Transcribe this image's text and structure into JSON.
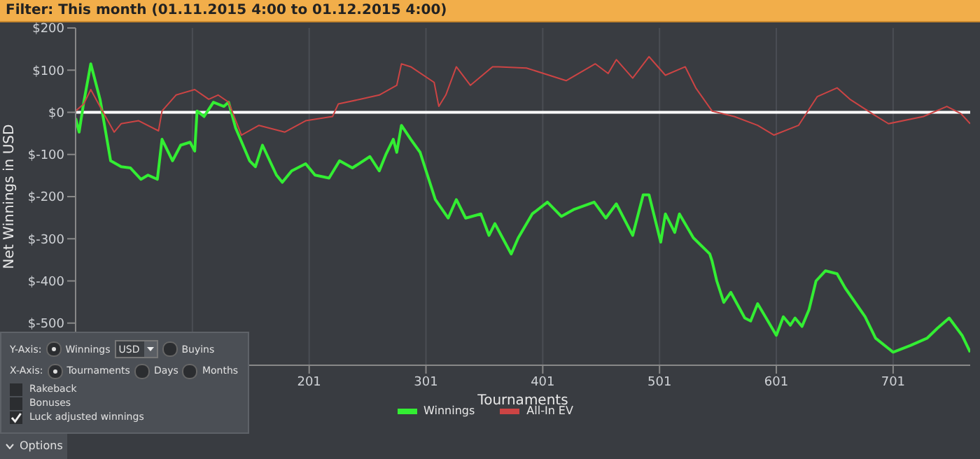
{
  "chart_data": {
    "type": "line",
    "title": "Filter: This month (01.11.2015 4:00 to 01.12.2015 4:00)",
    "xlabel": "Tournaments",
    "ylabel": "Net Winnings in USD",
    "xlim": [
      1,
      767
    ],
    "xticks": [
      {
        "value": 101,
        "label": null
      },
      201,
      301,
      401,
      501,
      601,
      701
    ],
    "ylim": [
      -600,
      200
    ],
    "yticks": [
      {
        "value": 200,
        "label": "$200"
      },
      {
        "value": 100,
        "label": "$100"
      },
      {
        "value": 0,
        "label": "$0"
      },
      {
        "value": -100,
        "label": "$-100"
      },
      {
        "value": -200,
        "label": "$-200"
      },
      {
        "value": -300,
        "label": "$-300"
      },
      {
        "value": -400,
        "label": "$-400"
      },
      {
        "value": -500,
        "label": "$-500"
      }
    ],
    "grid": true,
    "legend": "bottom",
    "marker": "none",
    "line_style": "solid",
    "ref_lines": [
      {
        "axis": "y",
        "value": 0,
        "color": "#ffffff"
      }
    ],
    "annotations": [
      "Y-Axis:",
      "Winnings",
      "USD",
      "Buyins",
      "X-Axis:",
      "Tournaments",
      "Days",
      "Months",
      "Rakeback",
      "Bonuses",
      "Luck adjusted winnings",
      "Options"
    ],
    "series": [
      {
        "name": "Winnings",
        "color": "#33ee33",
        "x": [
          1,
          4,
          8,
          14,
          22,
          31,
          40,
          48,
          57,
          63,
          71,
          75,
          84,
          91,
          99,
          103,
          105,
          111,
          119,
          128,
          132,
          138,
          150,
          155,
          161,
          173,
          178,
          186,
          198,
          206,
          218,
          227,
          238,
          253,
          261,
          267,
          273,
          276,
          280,
          288,
          296,
          309,
          320,
          327,
          335,
          348,
          355,
          360,
          374,
          380,
          392,
          405,
          417,
          428,
          445,
          455,
          464,
          478,
          487,
          492,
          502,
          506,
          514,
          518,
          530,
          544,
          546,
          550,
          556,
          562,
          574,
          579,
          585,
          601,
          607,
          613,
          617,
          623,
          629,
          635,
          643,
          653,
          660,
          677,
          686,
          701,
          716,
          730,
          739,
          749,
          760,
          767
        ],
        "values": [
          -14,
          -47,
          24,
          115,
          30,
          -115,
          -129,
          -132,
          -159,
          -149,
          -159,
          -64,
          -115,
          -78,
          -71,
          -92,
          3,
          -10,
          24,
          14,
          24,
          -37,
          -115,
          -129,
          -78,
          -149,
          -166,
          -139,
          -122,
          -149,
          -156,
          -115,
          -132,
          -105,
          -139,
          -98,
          -64,
          -95,
          -31,
          -64,
          -95,
          -207,
          -251,
          -207,
          -251,
          -241,
          -292,
          -264,
          -336,
          -298,
          -241,
          -213,
          -247,
          -230,
          -213,
          -251,
          -217,
          -292,
          -196,
          -196,
          -308,
          -241,
          -285,
          -241,
          -298,
          -336,
          -353,
          -400,
          -451,
          -427,
          -488,
          -495,
          -454,
          -529,
          -485,
          -505,
          -488,
          -508,
          -468,
          -400,
          -376,
          -383,
          -417,
          -485,
          -536,
          -569,
          -553,
          -536,
          -512,
          -488,
          -529,
          -569
        ]
      },
      {
        "name": "All-In EV",
        "color": "#cc4444",
        "x": [
          1,
          8,
          14,
          24,
          34,
          40,
          55,
          72,
          75,
          87,
          103,
          115,
          123,
          132,
          143,
          158,
          180,
          198,
          221,
          226,
          245,
          261,
          276,
          280,
          288,
          308,
          312,
          318,
          327,
          339,
          358,
          363,
          387,
          421,
          446,
          457,
          464,
          478,
          492,
          506,
          523,
          532,
          546,
          565,
          585,
          599,
          620,
          636,
          653,
          664,
          683,
          697,
          727,
          747,
          759,
          767
        ],
        "values": [
          3,
          20,
          54,
          3,
          -47,
          -27,
          -20,
          -44,
          3,
          41,
          54,
          31,
          41,
          24,
          -54,
          -31,
          -47,
          -20,
          -10,
          20,
          31,
          41,
          64,
          115,
          108,
          71,
          14,
          41,
          108,
          64,
          108,
          108,
          105,
          75,
          115,
          92,
          125,
          81,
          132,
          88,
          108,
          58,
          3,
          -10,
          -31,
          -54,
          -31,
          37,
          58,
          31,
          -3,
          -27,
          -10,
          14,
          -3,
          -27
        ]
      }
    ]
  }
}
